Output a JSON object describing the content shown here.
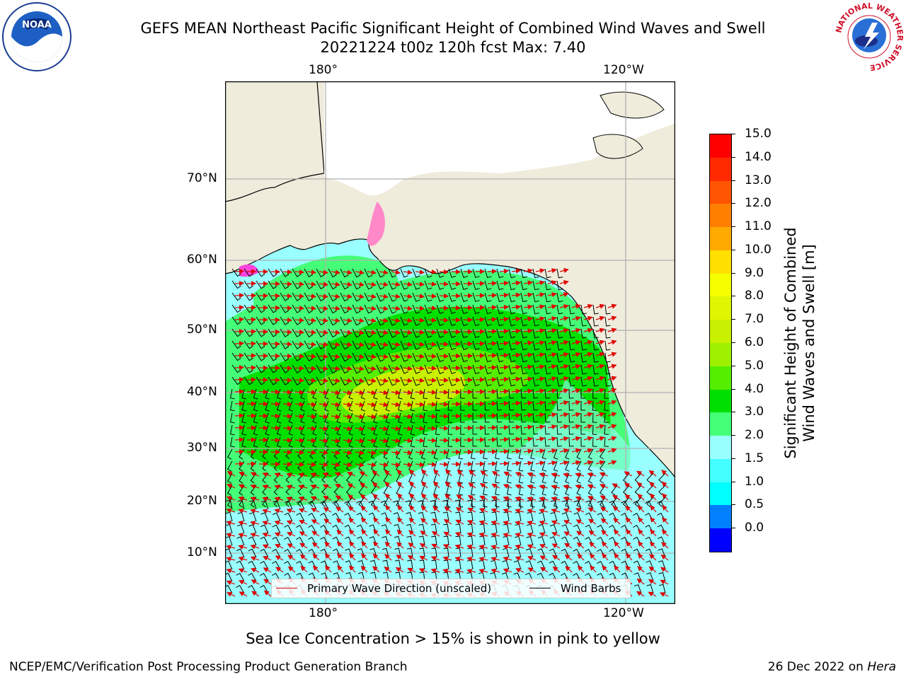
{
  "title": {
    "line1": "GEFS MEAN Northeast Pacific Significant Height of Combined Wind Waves and Swell",
    "line2": "20221224 t00z 120h fcst   Max: 7.40"
  },
  "map": {
    "top_lon_labels": [
      "180°",
      "120°W"
    ],
    "bottom_lon_labels": [
      "180°",
      "120°W"
    ],
    "lat_labels": [
      "70°N",
      "60°N",
      "50°N",
      "40°N",
      "30°N",
      "20°N",
      "10°N"
    ],
    "land_color": "#efecdc",
    "ocean_low_color": "#99ffff",
    "wave_arrow_color": "#e00000",
    "barb_color": "#000000"
  },
  "legend": {
    "primary_wave": "Primary Wave Direction (unscaled)",
    "wind_barbs": "Wind Barbs"
  },
  "colorbar": {
    "label_line1": "Significant Height of Combined",
    "label_line2": "Wind Waves and Swell [m]",
    "ticks": [
      "15.0",
      "14.0",
      "13.0",
      "12.0",
      "11.0",
      "10.0",
      "9.0",
      "8.0",
      "7.0",
      "6.0",
      "5.0",
      "4.0",
      "3.0",
      "2.0",
      "1.5",
      "1.0",
      "0.5",
      "0.0"
    ],
    "colors_top_to_bottom": [
      "#ff0000",
      "#ff2a00",
      "#ff5500",
      "#ff7f00",
      "#ffaa00",
      "#ffe000",
      "#f5ff00",
      "#e0f500",
      "#c8f000",
      "#9ff000",
      "#55ee00",
      "#00e000",
      "#44ff77",
      "#99ffff",
      "#44ffff",
      "#00ffff",
      "#0080ff",
      "#0000ff"
    ]
  },
  "caption": "Sea Ice Concentration > 15% is shown in pink to yellow",
  "footer": {
    "left": "NCEP/EMC/Verification Post Processing Product Generation Branch",
    "date": "26 Dec 2022 on ",
    "host": "Hera"
  },
  "logos": {
    "noaa_text": "NOAA",
    "nws_text": "NATIONAL WEATHER SERVICE"
  }
}
